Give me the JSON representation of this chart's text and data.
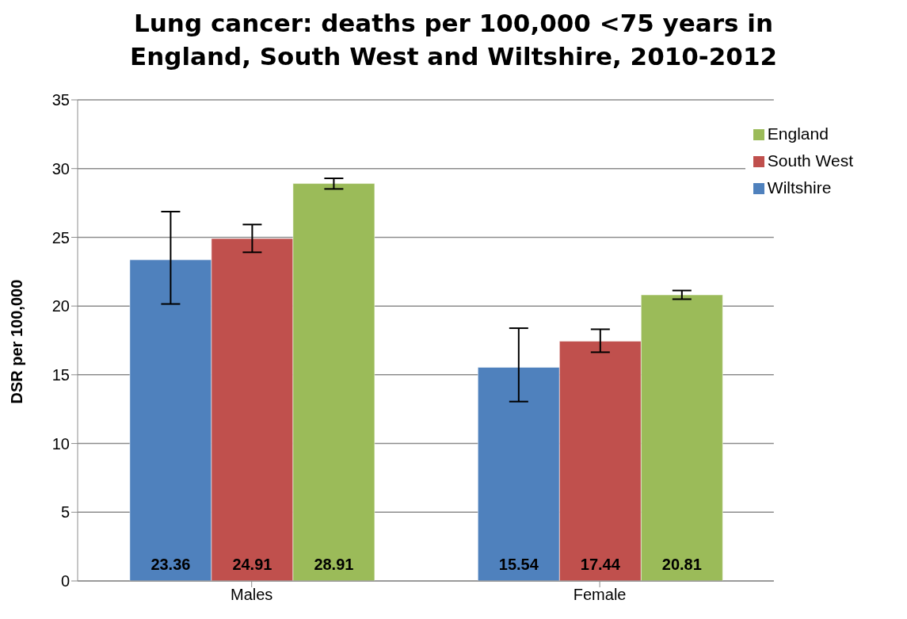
{
  "chart_data": {
    "type": "bar",
    "title": "Lung cancer: deaths per 100,000 <75 years in England, South West and Wiltshire, 2010-2012",
    "ylabel": "DSR per 100,000",
    "categories": [
      "Males",
      "Female"
    ],
    "series": [
      {
        "name": "Wiltshire",
        "color": "#4f81bd",
        "values": [
          23.36,
          15.54
        ],
        "errors": [
          [
            20.15,
            26.87
          ],
          [
            13.05,
            18.39
          ]
        ]
      },
      {
        "name": "South West",
        "color": "#c0504d",
        "values": [
          24.91,
          17.44
        ],
        "errors": [
          [
            23.91,
            25.93
          ],
          [
            16.64,
            18.31
          ]
        ]
      },
      {
        "name": "England",
        "color": "#9bbb59",
        "values": [
          28.91,
          20.81
        ],
        "errors": [
          [
            28.52,
            29.29
          ],
          [
            20.5,
            21.13
          ]
        ]
      }
    ],
    "ylim": [
      0,
      35
    ],
    "yticks": [
      0,
      5,
      10,
      15,
      20,
      25,
      30,
      35
    ],
    "grid": "y",
    "legend": "top right",
    "data_labels": true
  }
}
